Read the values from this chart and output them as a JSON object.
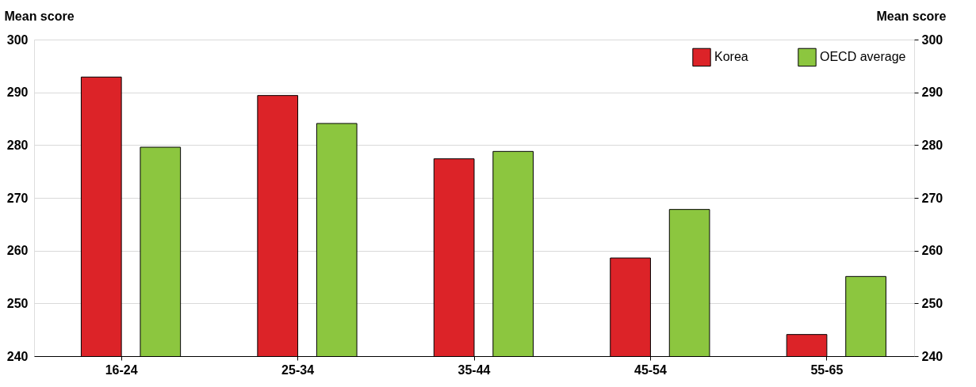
{
  "chart_data": {
    "type": "bar",
    "categories": [
      "16-24",
      "25-34",
      "35-44",
      "45-54",
      "55-65"
    ],
    "series": [
      {
        "name": "Korea",
        "color": "#dc2328",
        "values": [
          292.9,
          289.4,
          277.4,
          258.6,
          244.1
        ]
      },
      {
        "name": "OECD average",
        "color": "#8cc63f",
        "values": [
          279.6,
          284.1,
          278.8,
          267.8,
          255.1
        ]
      }
    ],
    "ylabel": "Mean score",
    "y2label": "Mean score",
    "ylim": [
      240,
      300
    ],
    "yticks": [
      240,
      250,
      260,
      270,
      280,
      290,
      300
    ],
    "y2lim": [
      240,
      300
    ],
    "y2ticks": [
      240,
      250,
      260,
      270,
      280,
      290,
      300
    ],
    "grid": "y",
    "legend": "top right"
  }
}
